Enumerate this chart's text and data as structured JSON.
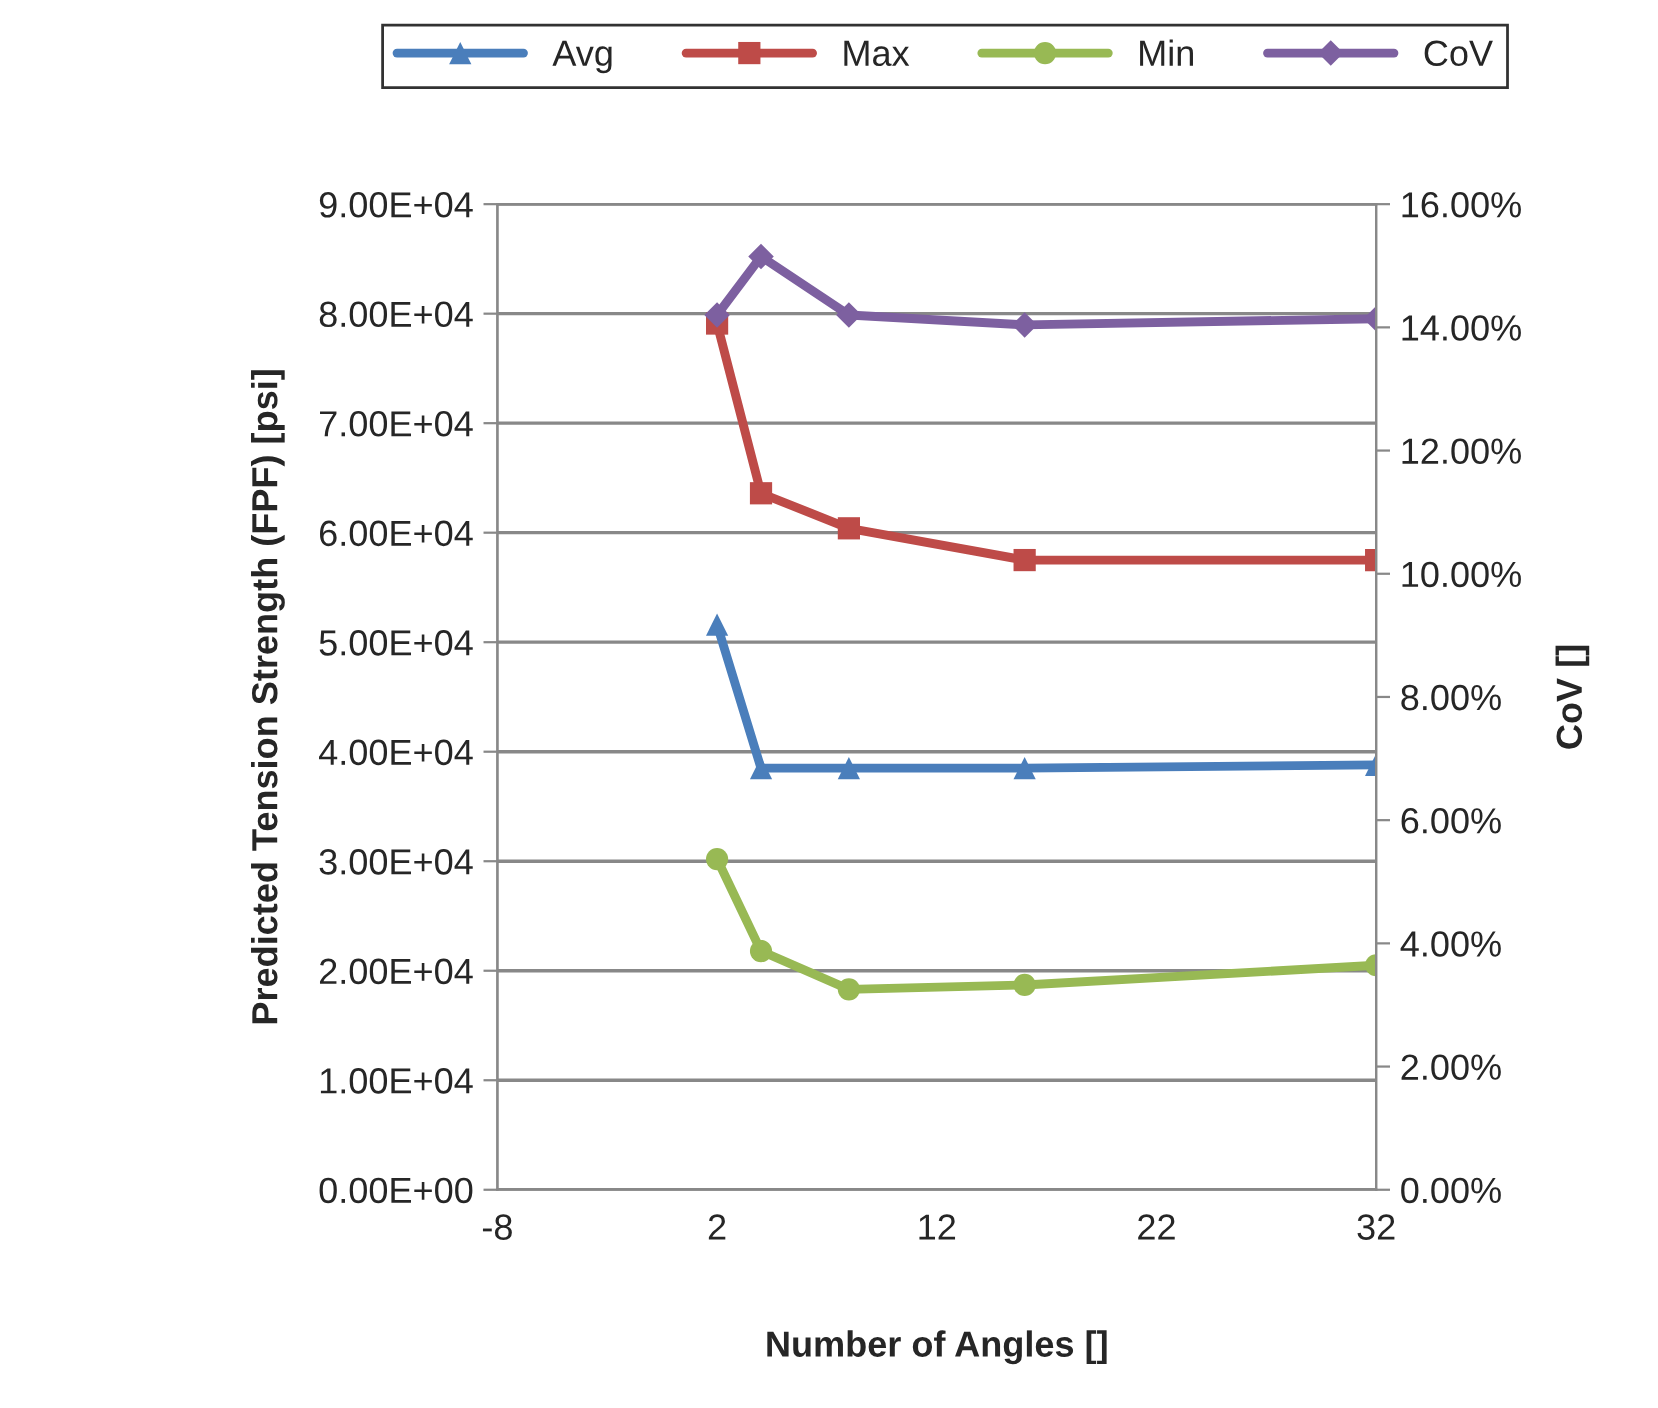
{
  "chart_data": {
    "type": "line",
    "xlabel": "Number of Angles []",
    "ylabel": "Predicted Tension Strength (FPF) [psi]",
    "y2label": "CoV []",
    "x": [
      2,
      4,
      8,
      16,
      32
    ],
    "series": [
      {
        "name": "Avg",
        "color": "#4a7ebb",
        "marker": "triangle",
        "values": [
          51600,
          38500,
          38500,
          38500,
          38800
        ]
      },
      {
        "name": "Max",
        "color": "#be4b48",
        "marker": "square",
        "values": [
          79100,
          63600,
          60400,
          57500,
          57500
        ]
      },
      {
        "name": "Min",
        "color": "#98b954",
        "marker": "circle",
        "values": [
          30200,
          21800,
          18300,
          18700,
          20500
        ]
      },
      {
        "name": "CoV",
        "color": "#7d60a0",
        "marker": "diamond",
        "axis": "y2",
        "values": [
          14.2,
          15.15,
          14.2,
          14.04,
          14.14
        ]
      }
    ],
    "xlim": [
      -8,
      32
    ],
    "xticks": [
      -8,
      2,
      12,
      22,
      32
    ],
    "ylim": [
      0,
      90000
    ],
    "yticks": [
      {
        "value": 0,
        "label": "0.00E+00"
      },
      {
        "value": 10000,
        "label": "1.00E+04"
      },
      {
        "value": 20000,
        "label": "2.00E+04"
      },
      {
        "value": 30000,
        "label": "3.00E+04"
      },
      {
        "value": 40000,
        "label": "4.00E+04"
      },
      {
        "value": 50000,
        "label": "5.00E+04"
      },
      {
        "value": 60000,
        "label": "6.00E+04"
      },
      {
        "value": 70000,
        "label": "7.00E+04"
      },
      {
        "value": 80000,
        "label": "8.00E+04"
      },
      {
        "value": 90000,
        "label": "9.00E+04"
      }
    ],
    "y2lim": [
      0,
      16
    ],
    "y2ticks": [
      {
        "value": 0,
        "label": "0.00%"
      },
      {
        "value": 2,
        "label": "2.00%"
      },
      {
        "value": 4,
        "label": "4.00%"
      },
      {
        "value": 6,
        "label": "6.00%"
      },
      {
        "value": 8,
        "label": "8.00%"
      },
      {
        "value": 10,
        "label": "10.00%"
      },
      {
        "value": 12,
        "label": "12.00%"
      },
      {
        "value": 14,
        "label": "14.00%"
      },
      {
        "value": 16,
        "label": "16.00%"
      }
    ],
    "grid": "y",
    "legend": "top"
  }
}
